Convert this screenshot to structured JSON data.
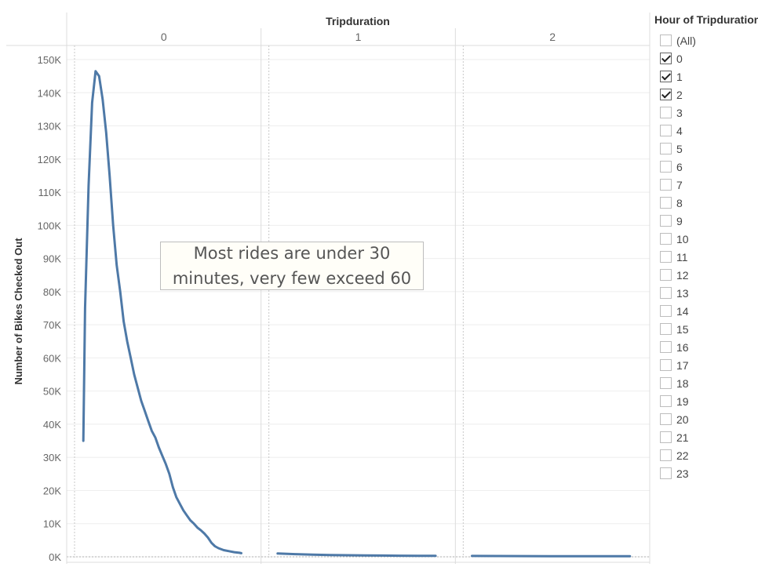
{
  "chart_data": {
    "type": "line",
    "column_title": "Tripduration",
    "columns": [
      "0",
      "1",
      "2"
    ],
    "ylabel": "Number of Bikes Checked Out",
    "ylim": [
      0,
      150000
    ],
    "y_ticks": [
      "0K",
      "10K",
      "20K",
      "30K",
      "40K",
      "50K",
      "60K",
      "70K",
      "80K",
      "90K",
      "100K",
      "110K",
      "120K",
      "130K",
      "140K",
      "150K"
    ],
    "grid": true,
    "series": [
      {
        "color": "#4e79a7",
        "panels": [
          {
            "column": "0",
            "x": [
              0.05,
              0.06,
              0.08,
              0.1,
              0.12,
              0.14,
              0.16,
              0.18,
              0.2,
              0.22,
              0.24,
              0.26,
              0.28,
              0.3,
              0.32,
              0.34,
              0.36,
              0.38,
              0.4,
              0.42,
              0.44,
              0.46,
              0.48,
              0.5,
              0.52,
              0.54,
              0.56,
              0.58,
              0.6,
              0.62,
              0.64,
              0.66,
              0.68,
              0.7,
              0.72,
              0.74,
              0.76,
              0.78,
              0.8,
              0.82,
              0.85,
              0.88,
              0.91,
              0.94,
              0.95
            ],
            "y": [
              35000,
              75000,
              112000,
              137000,
              146500,
              145000,
              138000,
              128000,
              115000,
              100000,
              88000,
              80000,
              71000,
              65000,
              60000,
              55000,
              51000,
              47000,
              44000,
              41000,
              38000,
              36000,
              33000,
              30500,
              28000,
              25000,
              21000,
              18000,
              16000,
              14000,
              12500,
              11000,
              10000,
              8800,
              8000,
              7000,
              5800,
              4200,
              3200,
              2600,
              2000,
              1700,
              1400,
              1200,
              1100
            ]
          },
          {
            "column": "1",
            "x": [
              0.05,
              0.15,
              0.25,
              0.35,
              0.45,
              0.55,
              0.65,
              0.75,
              0.85,
              0.95
            ],
            "y": [
              1000,
              800,
              650,
              550,
              480,
              430,
              380,
              340,
              300,
              280
            ]
          },
          {
            "column": "2",
            "x": [
              0.05,
              0.2,
              0.35,
              0.5,
              0.65,
              0.8,
              0.95
            ],
            "y": [
              260,
              240,
              220,
              200,
              190,
              180,
              170
            ]
          }
        ]
      }
    ],
    "annotation": "Most rides are under 30 minutes, very few exceed 60"
  },
  "filter": {
    "title": "Hour of Tripduration",
    "items": [
      {
        "label": "(All)",
        "checked": false
      },
      {
        "label": "0",
        "checked": true
      },
      {
        "label": "1",
        "checked": true
      },
      {
        "label": "2",
        "checked": true
      },
      {
        "label": "3",
        "checked": false
      },
      {
        "label": "4",
        "checked": false
      },
      {
        "label": "5",
        "checked": false
      },
      {
        "label": "6",
        "checked": false
      },
      {
        "label": "7",
        "checked": false
      },
      {
        "label": "8",
        "checked": false
      },
      {
        "label": "9",
        "checked": false
      },
      {
        "label": "10",
        "checked": false
      },
      {
        "label": "11",
        "checked": false
      },
      {
        "label": "12",
        "checked": false
      },
      {
        "label": "13",
        "checked": false
      },
      {
        "label": "14",
        "checked": false
      },
      {
        "label": "15",
        "checked": false
      },
      {
        "label": "16",
        "checked": false
      },
      {
        "label": "17",
        "checked": false
      },
      {
        "label": "18",
        "checked": false
      },
      {
        "label": "19",
        "checked": false
      },
      {
        "label": "20",
        "checked": false
      },
      {
        "label": "21",
        "checked": false
      },
      {
        "label": "22",
        "checked": false
      },
      {
        "label": "23",
        "checked": false
      }
    ]
  }
}
